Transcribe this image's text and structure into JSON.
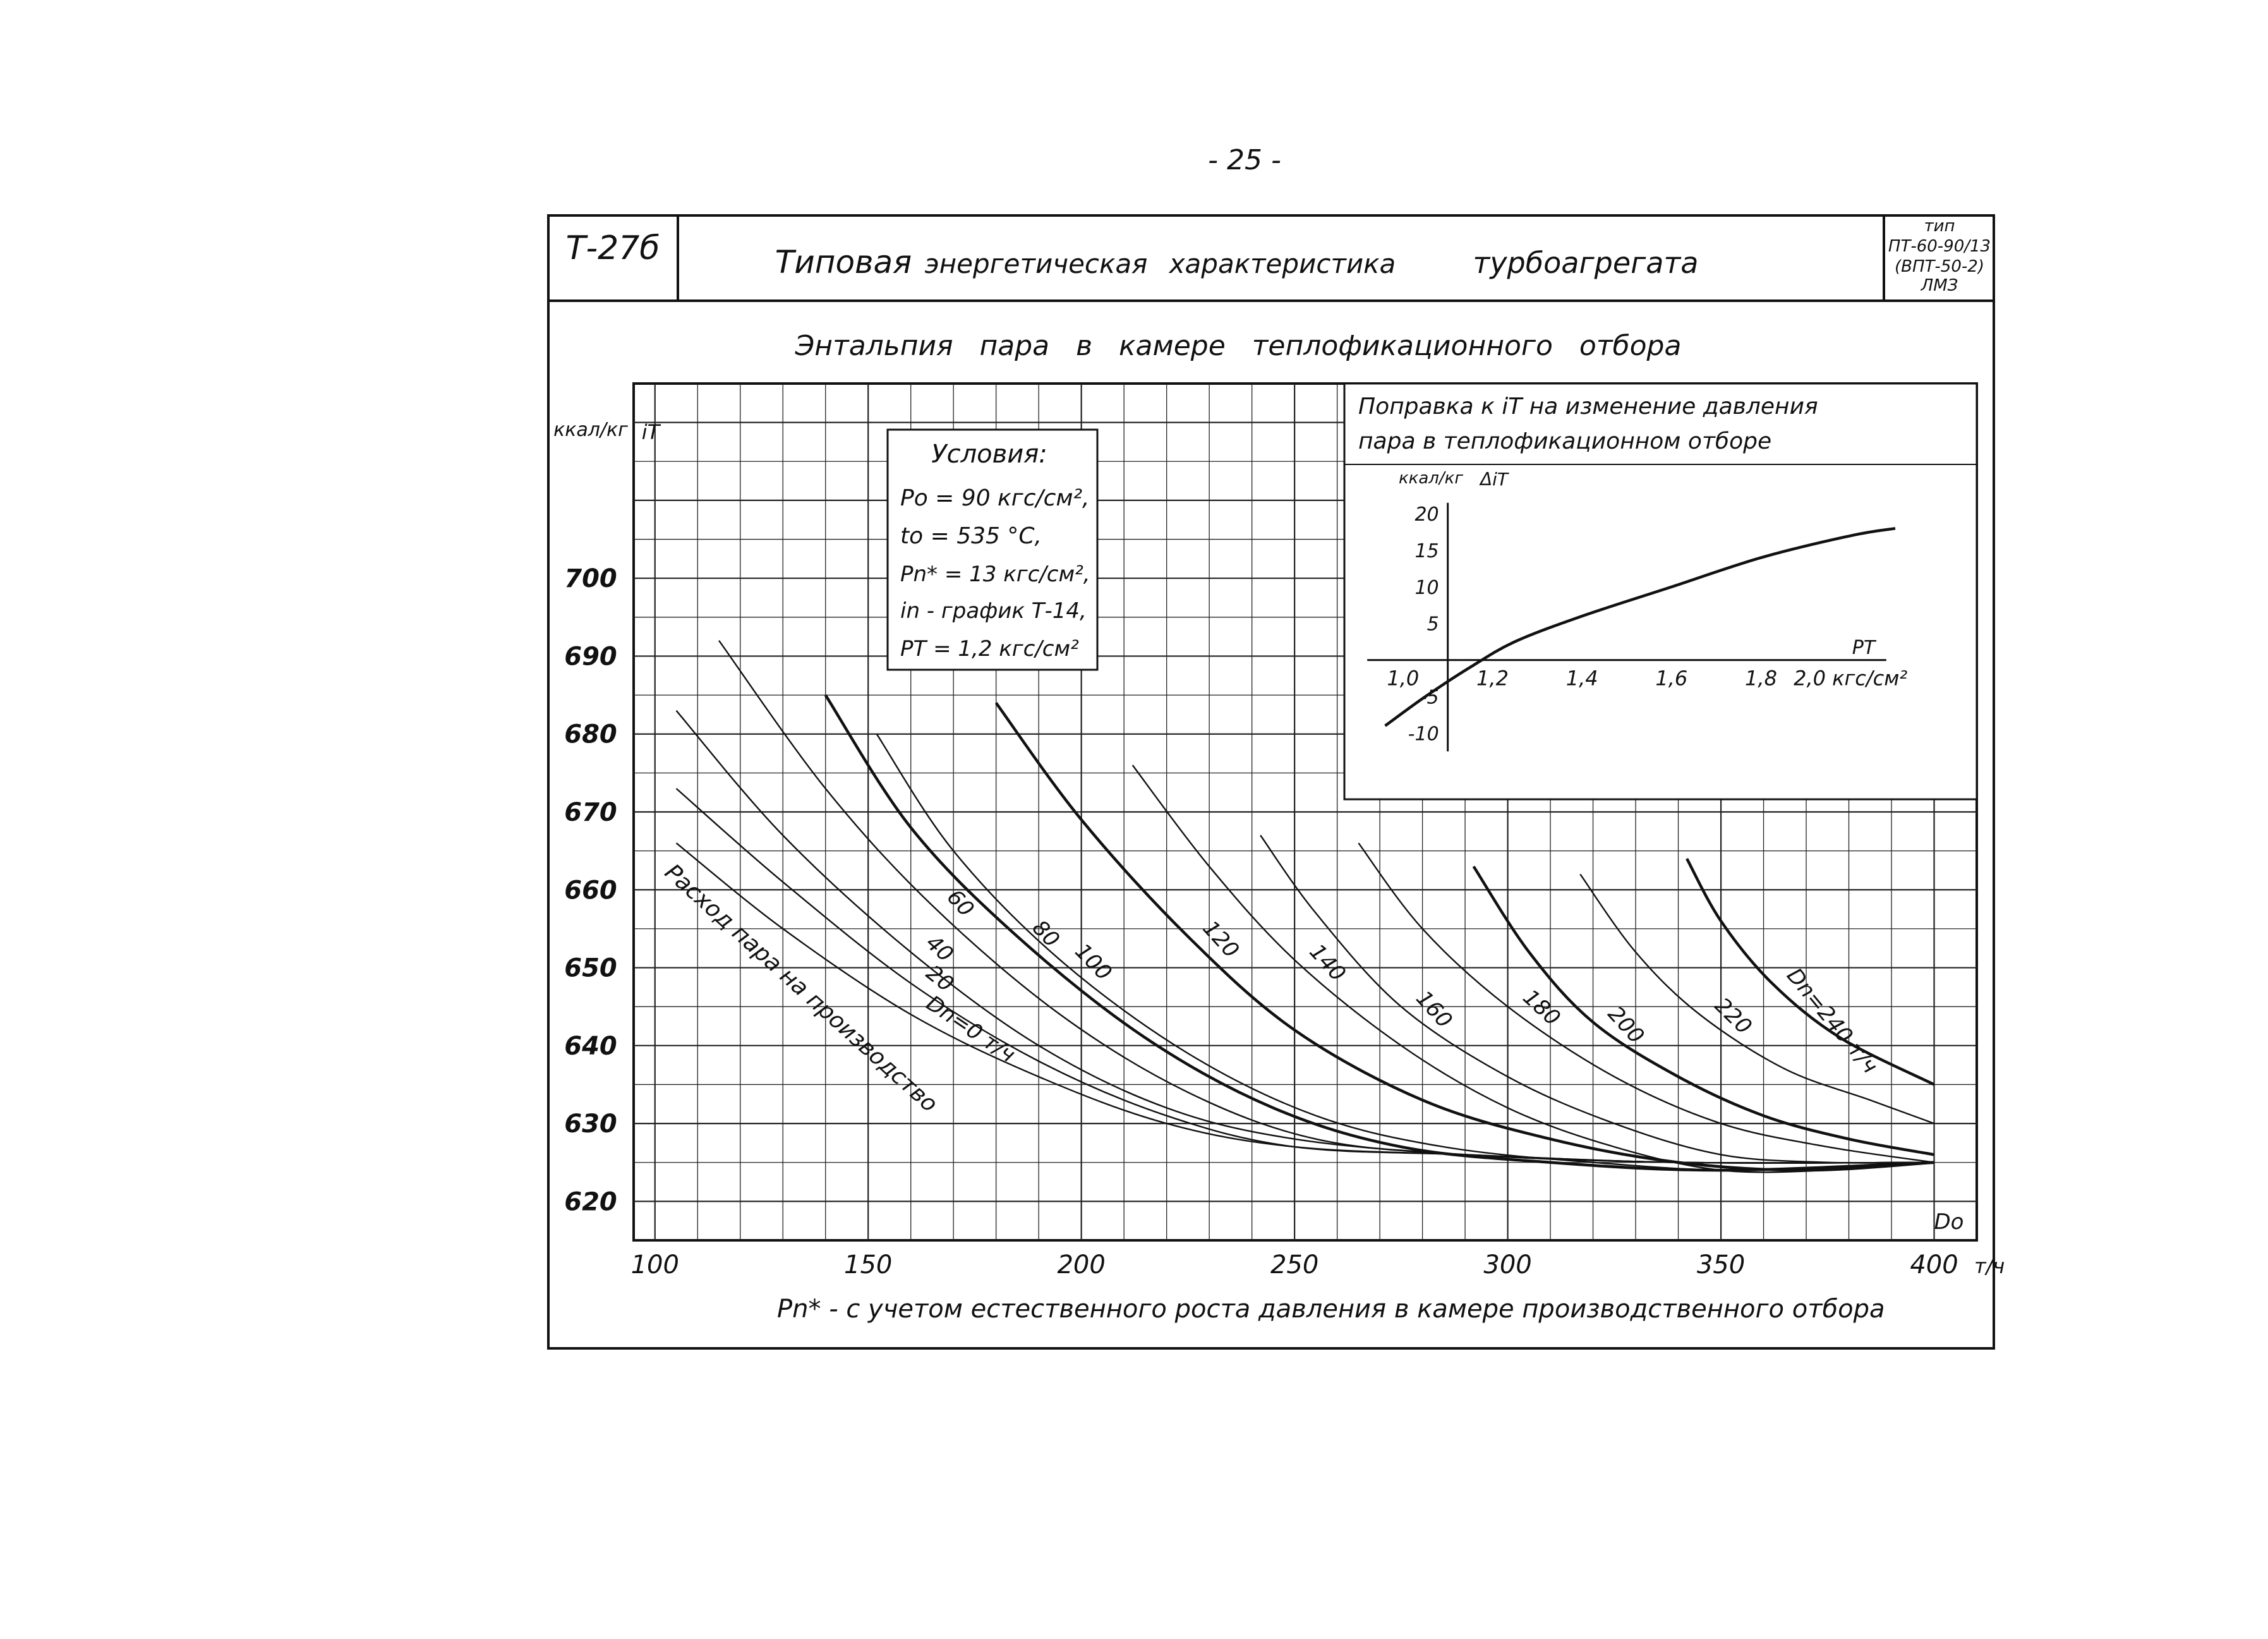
{
  "page_number": "- 25 -",
  "header": {
    "code": "Т-27б",
    "title_parts": [
      "Типовая",
      "энергетическая",
      "характеристика",
      "турбоагрегата"
    ],
    "type_lines": [
      "тип",
      "ПТ-60-90/13",
      "(ВПТ-50-2)",
      "ЛМЗ"
    ]
  },
  "chart_title": "Энтальпия   пара   в   камере   теплофикационного   отбора",
  "conditions": {
    "title": "Условия:",
    "lines": [
      "Po = 90 кгс/см²,",
      "to = 535 °C,",
      "Pn* = 13 кгс/см²,",
      "in - график Т-14,",
      "PT = 1,2 кгс/см²"
    ]
  },
  "footnote": "Pn* - с учетом естественного роста давления в камере производственного отбора",
  "chart_data": [
    {
      "type": "line",
      "ylabel_unit": "ккал/кг",
      "ylabel_symbol": "iT",
      "xlabel_symbol": "Do",
      "x_ticks": [
        "100",
        "150",
        "200",
        "250",
        "300",
        "350",
        "400"
      ],
      "x_unit_suffix": "т/ч",
      "y_ticks": [
        "620",
        "630",
        "640",
        "650",
        "660",
        "670",
        "680",
        "690",
        "700"
      ],
      "xlim": [
        95,
        410
      ],
      "ylim": [
        615,
        725
      ],
      "grid": true,
      "series_annotation": "Расход пара на производство",
      "series": [
        {
          "name": "Dn=0 т/ч",
          "x": [
            105,
            130,
            160,
            190,
            220,
            250,
            290,
            340,
            400
          ],
          "y": [
            666,
            655,
            644,
            636,
            630,
            627,
            626,
            625,
            625
          ]
        },
        {
          "name": "20",
          "x": [
            105,
            130,
            160,
            190,
            220,
            250,
            290,
            340,
            400
          ],
          "y": [
            673,
            661,
            648,
            638,
            631,
            627,
            626,
            625,
            625
          ]
        },
        {
          "name": "40",
          "x": [
            105,
            130,
            160,
            190,
            220,
            250,
            290,
            340,
            400
          ],
          "y": [
            683,
            667,
            652,
            640,
            632,
            628,
            626,
            625,
            625
          ]
        },
        {
          "name": "60",
          "x": [
            115,
            140,
            165,
            195,
            225,
            255,
            290,
            340,
            400
          ],
          "y": [
            692,
            673,
            658,
            644,
            634,
            628,
            626,
            625,
            625
          ]
        },
        {
          "name": "80",
          "x": [
            140,
            160,
            185,
            215,
            245,
            275,
            310,
            350,
            400
          ],
          "y": [
            685,
            668,
            654,
            641,
            632,
            627,
            625,
            624,
            625
          ]
        },
        {
          "name": "100",
          "x": [
            152,
            170,
            195,
            225,
            255,
            285,
            320,
            355,
            400
          ],
          "y": [
            680,
            665,
            651,
            639,
            631,
            627,
            625,
            624,
            625
          ]
        },
        {
          "name": "120",
          "x": [
            180,
            200,
            225,
            250,
            280,
            310,
            340,
            370,
            400
          ],
          "y": [
            684,
            669,
            654,
            642,
            633,
            628,
            625,
            624,
            625
          ]
        },
        {
          "name": "140",
          "x": [
            212,
            230,
            250,
            275,
            300,
            325,
            350,
            375,
            400
          ],
          "y": [
            676,
            663,
            651,
            640,
            632,
            627,
            624,
            624,
            625
          ]
        },
        {
          "name": "160",
          "x": [
            242,
            255,
            275,
            300,
            325,
            350,
            375,
            400
          ],
          "y": [
            667,
            657,
            645,
            636,
            630,
            626,
            625,
            625
          ]
        },
        {
          "name": "180",
          "x": [
            265,
            280,
            300,
            325,
            350,
            375,
            400
          ],
          "y": [
            666,
            655,
            645,
            636,
            630,
            627,
            625
          ]
        },
        {
          "name": "200",
          "x": [
            292,
            305,
            320,
            340,
            360,
            380,
            400
          ],
          "y": [
            663,
            652,
            643,
            636,
            631,
            628,
            626
          ]
        },
        {
          "name": "220",
          "x": [
            317,
            330,
            345,
            365,
            385,
            400
          ],
          "y": [
            662,
            652,
            644,
            637,
            633,
            630
          ]
        },
        {
          "name": "Dn=240 т/ч",
          "x": [
            342,
            350,
            362,
            378,
            400
          ],
          "y": [
            664,
            656,
            648,
            641,
            635
          ]
        }
      ]
    },
    {
      "type": "line",
      "title_lines": [
        "Поправка к iT на изменение давления",
        "пара в теплофикационном отборе"
      ],
      "ylabel_unit": "ккал/кг",
      "ylabel_symbol": "ΔiT",
      "xlabel_symbol": "PT",
      "x_ticks": [
        "1,0",
        "1,2",
        "1,4",
        "1,6",
        "1,8",
        "2,0"
      ],
      "x_unit_suffix": "кгс/см²",
      "y_ticks": [
        "20",
        "15",
        "10",
        "5",
        "-5",
        "-10"
      ],
      "xlim": [
        0.9,
        2.1
      ],
      "ylim": [
        -13,
        22
      ],
      "series": [
        {
          "name": "",
          "x": [
            0.96,
            1.05,
            1.15,
            1.25,
            1.4,
            1.6,
            1.8,
            2.0,
            2.1
          ],
          "y": [
            -9,
            -5,
            -1,
            2.5,
            6,
            10,
            14,
            17,
            18
          ]
        }
      ]
    }
  ]
}
